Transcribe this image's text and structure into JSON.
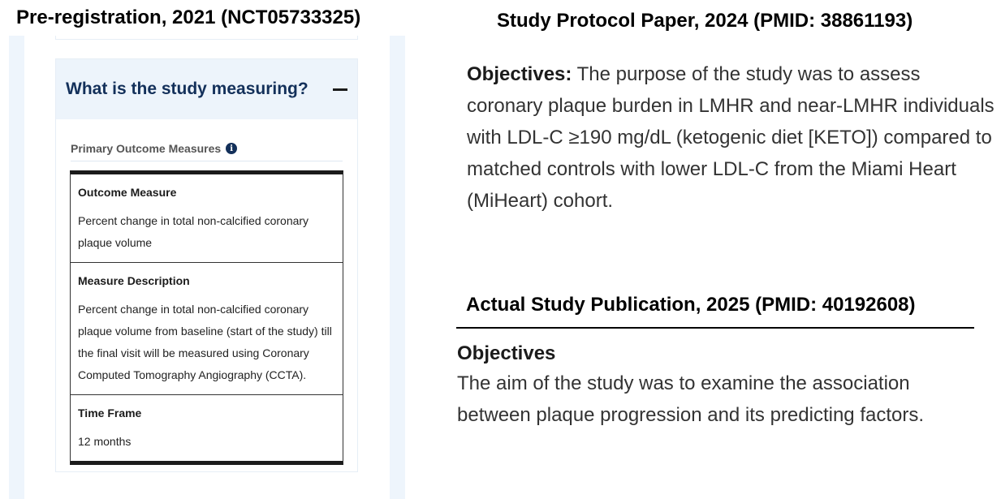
{
  "left": {
    "heading": "Pre-registration, 2021 (NCT05733325)",
    "accordion_title": "What is the study measuring?",
    "section_label": "Primary Outcome Measures",
    "rows": [
      {
        "label": "Outcome Measure",
        "value": "Percent change in total non-calcified coronary plaque volume"
      },
      {
        "label": "Measure Description",
        "value": "Percent change in total non-calcified coronary plaque volume from baseline (start of the study) till the final visit will be measured using Coronary Computed Tomography Angiography (CCTA)."
      },
      {
        "label": "Time Frame",
        "value": "12 months"
      }
    ]
  },
  "protocol": {
    "heading": "Study Protocol Paper, 2024 (PMID: 38861193)",
    "label": "Objectives:",
    "text": " The purpose of the study was to assess coronary plaque burden in LMHR and near-LMHR individuals with LDL-C ≥190 mg/dL (ketogenic diet [KETO]) compared to matched controls with lower LDL-C from the Miami Heart (MiHeart) cohort."
  },
  "publication": {
    "heading": "Actual Study Publication, 2025 (PMID: 40192608)",
    "label": "Objectives",
    "text": "The aim of the study was to examine the association between plaque progression and its predicting factors."
  }
}
